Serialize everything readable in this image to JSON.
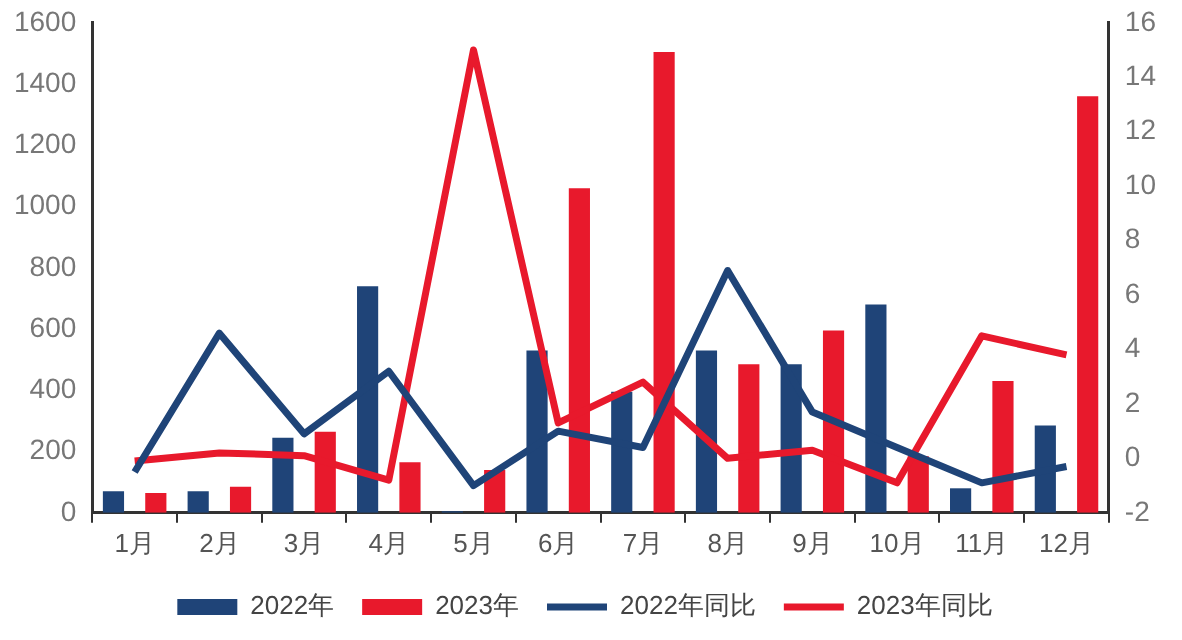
{
  "chart_data": {
    "type": "bar",
    "categories": [
      "1月",
      "2月",
      "3月",
      "4月",
      "5月",
      "6月",
      "7月",
      "8月",
      "9月",
      "10月",
      "11月",
      "12月"
    ],
    "series": [
      {
        "name": "2022年",
        "color": "#1f4478",
        "values": [
          70,
          70,
          245,
          740,
          5,
          530,
          395,
          530,
          485,
          680,
          80,
          285
        ]
      },
      {
        "name": "2023年",
        "color": "#e8192c",
        "values": [
          65,
          85,
          265,
          165,
          140,
          1060,
          1505,
          485,
          595,
          185,
          430,
          1360
        ]
      },
      {
        "name": "2022年同比",
        "type": "line",
        "axis": "y2",
        "color": "#1f4478",
        "values": [
          -0.5,
          4.6,
          0.9,
          3.2,
          -1.0,
          1.0,
          0.4,
          6.9,
          1.7,
          0.4,
          -0.9,
          -0.3
        ]
      },
      {
        "name": "2023年同比",
        "type": "line",
        "axis": "y2",
        "color": "#e8192c",
        "values": [
          -0.1,
          0.2,
          0.1,
          -0.8,
          15,
          1.3,
          2.8,
          0,
          0.3,
          -0.9,
          4.5,
          3.8
        ]
      }
    ],
    "ylim": [
      0,
      1600
    ],
    "yticks": [
      0,
      200,
      400,
      600,
      800,
      1000,
      1200,
      1400,
      1600
    ],
    "y2lim": [
      -2,
      16
    ],
    "y2ticks": [
      -2,
      0,
      2,
      4,
      6,
      8,
      10,
      12,
      14,
      16
    ],
    "grid": false,
    "legend": "bottom",
    "marker": "none"
  }
}
